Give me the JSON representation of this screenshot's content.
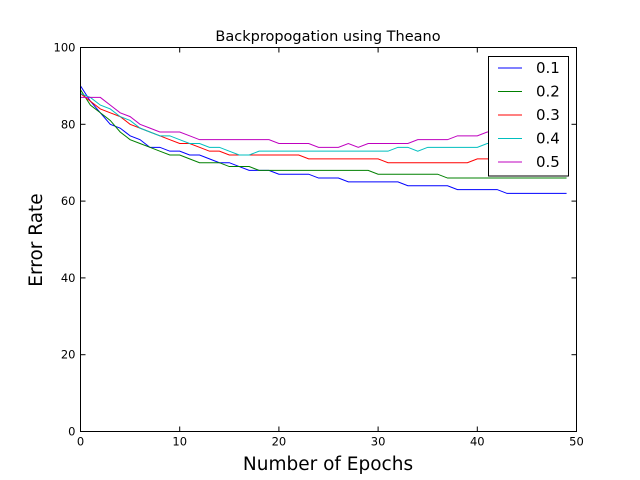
{
  "chart_data": {
    "type": "line",
    "title": "Backpropogation using Theano",
    "xlabel": "Number of Epochs",
    "ylabel": "Error Rate",
    "xlim": [
      0,
      50
    ],
    "ylim": [
      0,
      100
    ],
    "xticks": [
      0,
      10,
      20,
      30,
      40,
      50
    ],
    "yticks": [
      0,
      20,
      40,
      60,
      80,
      100
    ],
    "grid": false,
    "legend_position": "top-right",
    "x": [
      0,
      1,
      2,
      3,
      4,
      5,
      6,
      7,
      8,
      9,
      10,
      11,
      12,
      13,
      14,
      15,
      16,
      17,
      18,
      19,
      20,
      21,
      22,
      23,
      24,
      25,
      26,
      27,
      28,
      29,
      30,
      31,
      32,
      33,
      34,
      35,
      36,
      37,
      38,
      39,
      40,
      41,
      42,
      43,
      44,
      45,
      46,
      47,
      48,
      49
    ],
    "series": [
      {
        "name": "0.1",
        "color": "#0000ff",
        "values": [
          90,
          86,
          83,
          80,
          79,
          77,
          76,
          74,
          74,
          73,
          73,
          72,
          72,
          71,
          70,
          70,
          69,
          68,
          68,
          68,
          67,
          67,
          67,
          67,
          66,
          66,
          66,
          65,
          65,
          65,
          65,
          65,
          65,
          64,
          64,
          64,
          64,
          64,
          63,
          63,
          63,
          63,
          63,
          62,
          62,
          62,
          62,
          62,
          62,
          62
        ]
      },
      {
        "name": "0.2",
        "color": "#008000",
        "values": [
          89,
          85,
          83,
          81,
          78,
          76,
          75,
          74,
          73,
          72,
          72,
          71,
          70,
          70,
          70,
          69,
          69,
          69,
          68,
          68,
          68,
          68,
          68,
          68,
          68,
          68,
          68,
          68,
          68,
          68,
          67,
          67,
          67,
          67,
          67,
          67,
          67,
          66,
          66,
          66,
          66,
          66,
          66,
          66,
          66,
          66,
          66,
          66,
          66,
          66
        ]
      },
      {
        "name": "0.3",
        "color": "#ff0000",
        "values": [
          88,
          86,
          84,
          83,
          82,
          80,
          79,
          78,
          77,
          76,
          75,
          75,
          74,
          73,
          73,
          72,
          72,
          72,
          72,
          72,
          72,
          72,
          72,
          71,
          71,
          71,
          71,
          71,
          71,
          71,
          71,
          70,
          70,
          70,
          70,
          70,
          70,
          70,
          70,
          70,
          71,
          71,
          71,
          71,
          71,
          71,
          71,
          71,
          71,
          71
        ]
      },
      {
        "name": "0.4",
        "color": "#00bfbf",
        "values": [
          88,
          87,
          85,
          84,
          82,
          81,
          79,
          78,
          77,
          77,
          76,
          75,
          75,
          74,
          74,
          73,
          72,
          72,
          73,
          73,
          73,
          73,
          73,
          73,
          73,
          73,
          73,
          73,
          73,
          73,
          73,
          73,
          74,
          74,
          73,
          74,
          74,
          74,
          74,
          74,
          74,
          75,
          75,
          75,
          75,
          75,
          75,
          75,
          75,
          75
        ]
      },
      {
        "name": "0.5",
        "color": "#bf00bf",
        "values": [
          87,
          87,
          87,
          85,
          83,
          82,
          80,
          79,
          78,
          78,
          78,
          77,
          76,
          76,
          76,
          76,
          76,
          76,
          76,
          76,
          75,
          75,
          75,
          75,
          74,
          74,
          74,
          75,
          74,
          75,
          75,
          75,
          75,
          75,
          76,
          76,
          76,
          76,
          77,
          77,
          77,
          78,
          78,
          78,
          78,
          78,
          78,
          78,
          78,
          78
        ]
      }
    ]
  }
}
